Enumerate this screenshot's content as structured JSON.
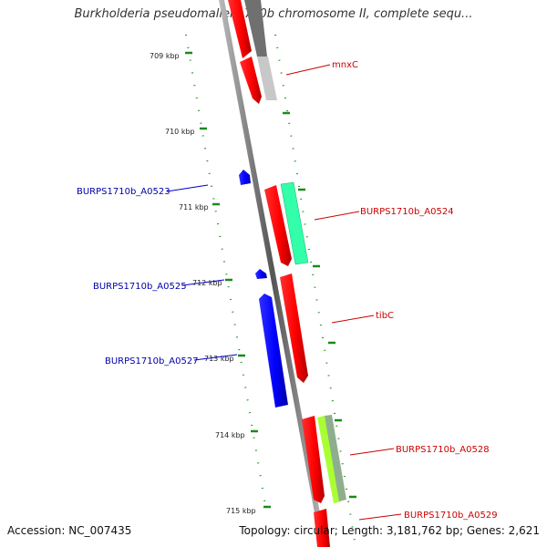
{
  "title": "Burkholderia pseudomallei 1710b chromosome II, complete sequ...",
  "footer": {
    "accession": "Accession: NC_007435",
    "summary": "Topology: circular; Length: 3,181,762 bp; Genes: 2,621"
  },
  "colors": {
    "forward": "#ff0000",
    "reverse": "#0000ff",
    "backbone": "#808080",
    "ticks": "#1a8a1a",
    "gene_a0524_shade": "#33ffaa",
    "gene_a0528_shade": "#aaff33"
  },
  "kbp_labels": [
    "709 kbp",
    "710 kbp",
    "711 kbp",
    "712 kbp",
    "713 kbp",
    "714 kbp",
    "715 kbp"
  ],
  "genes": [
    {
      "label": "mnxC",
      "strand": "forward"
    },
    {
      "label": "BURPS1710b_A0523",
      "strand": "reverse"
    },
    {
      "label": "BURPS1710b_A0524",
      "strand": "forward"
    },
    {
      "label": "BURPS1710b_A0525",
      "strand": "reverse"
    },
    {
      "label": "tibC",
      "strand": "forward"
    },
    {
      "label": "BURPS1710b_A0527",
      "strand": "reverse"
    },
    {
      "label": "BURPS1710b_A0528",
      "strand": "forward"
    },
    {
      "label": "BURPS1710b_A0529",
      "strand": "forward"
    }
  ]
}
